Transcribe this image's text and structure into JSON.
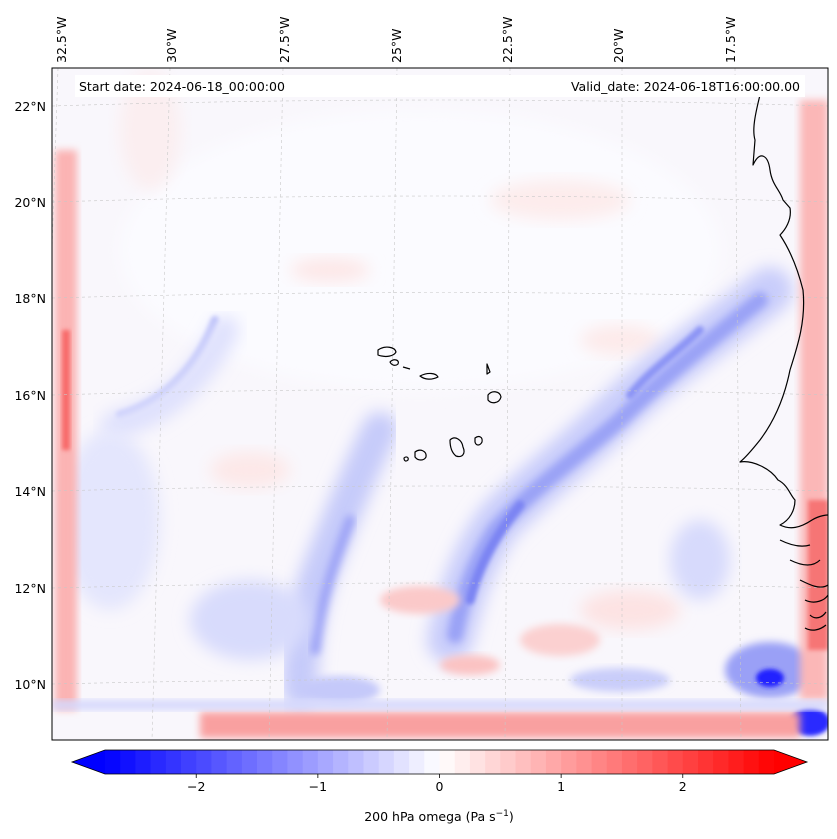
{
  "map": {
    "start_date": "Start date: 2024-06-18_00:00:00",
    "valid_date": "Valid_date: 2024-06-18T16:00:00.00",
    "lon_ticks": [
      "32.5°W",
      "30°W",
      "27.5°W",
      "25°W",
      "22.5°W",
      "20°W",
      "17.5°W"
    ],
    "lat_ticks": [
      "22°N",
      "20°N",
      "18°N",
      "16°N",
      "14°N",
      "12°N",
      "10°N"
    ],
    "gridlines": true,
    "field": "200 hPa omega",
    "units_display": "Pa s",
    "units_exponent": "−1"
  },
  "colorbar": {
    "label_text": "200 hPa omega (Pa s",
    "label_close": ")",
    "ticks": [
      "−2",
      "−1",
      "0",
      "1",
      "2"
    ],
    "tick_values": [
      -2,
      -1,
      0,
      1,
      2
    ],
    "range": [
      -2.75,
      2.75
    ],
    "extend": "both",
    "colormap": "bwr",
    "color_min": "#0000ff",
    "color_mid": "#ffffff",
    "color_max": "#ff0000"
  }
}
